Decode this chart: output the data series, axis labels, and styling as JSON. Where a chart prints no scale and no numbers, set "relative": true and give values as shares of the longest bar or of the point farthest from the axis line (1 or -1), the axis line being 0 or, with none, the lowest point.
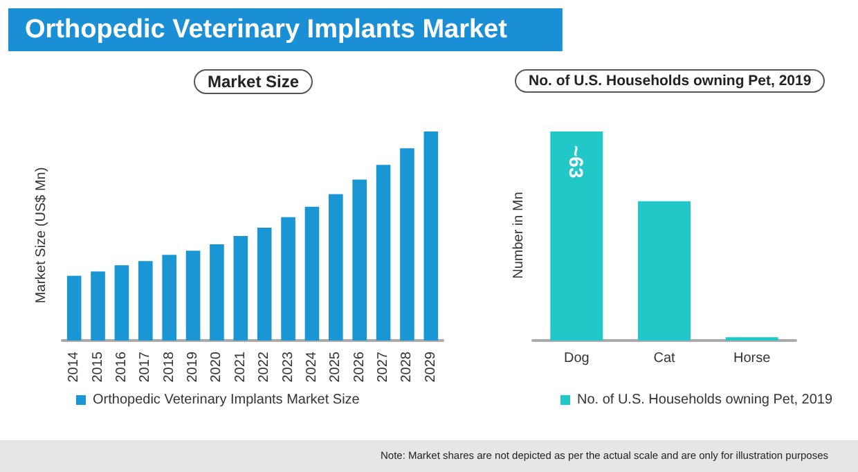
{
  "chart_data": [
    {
      "type": "bar",
      "title": "Orthopedic Veterinary Implants Market",
      "subtitle": "Market Size",
      "ylabel": "Market Size (US$ Mn)",
      "relative": true,
      "legend": "bottom",
      "categories": [
        "2014",
        "2015",
        "2016",
        "2017",
        "2018",
        "2019",
        "2020",
        "2021",
        "2022",
        "2023",
        "2024",
        "2025",
        "2026",
        "2027",
        "2028",
        "2029"
      ],
      "series": [
        {
          "name": "Orthopedic Veterinary Implants Market Size",
          "color": "#1a96d4",
          "values": [
            0.31,
            0.33,
            0.36,
            0.38,
            0.41,
            0.43,
            0.46,
            0.5,
            0.54,
            0.59,
            0.64,
            0.7,
            0.77,
            0.84,
            0.92,
            1
          ]
        }
      ]
    },
    {
      "type": "bar",
      "title": "No. of U.S. Households owning Pet, 2019",
      "ylabel": "Number in Mn",
      "legend": "bottom",
      "tick_labels": "x",
      "categories": [
        "Dog",
        "Cat",
        "Horse"
      ],
      "series": [
        {
          "name": "No. of U.S. Households owning Pet, 2019",
          "color": "#22c8c8",
          "values": [
            63,
            42,
            1
          ],
          "value_labels": [
            "~63",
            null,
            null
          ]
        }
      ],
      "annotations": [
        "Note: Market shares are not depicted as per the actual scale and are only for illustration purposes"
      ]
    }
  ]
}
